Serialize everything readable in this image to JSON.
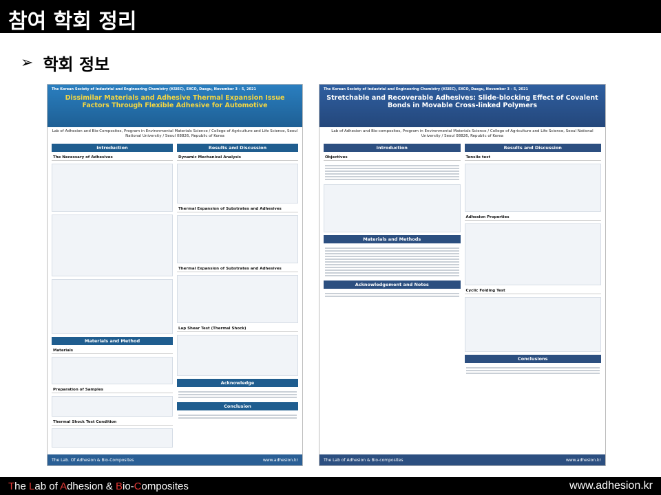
{
  "slide": {
    "title": "참여 학회 정리",
    "section_label": "학회 정보"
  },
  "poster1": {
    "conference": "The Korean Society of Industrial and Engineering Chemistry (KSIEC), EXCO, Daegu, November 3 – 5, 2021",
    "title": "Dissimilar Materials and Adhesive Thermal Expansion Issue Factors Through Flexible Adhesive for Automotive",
    "affiliation": "Lab of Adhesion and Bio-Composites, Program in Environmental Materials Science / College of Agriculture and Life Science, Seoul National University / Seoul 08826, Republic of Korea",
    "sections": {
      "intro": "Introduction",
      "results": "Results and Discussion",
      "methods": "Materials and Method",
      "ack": "Acknowledge",
      "conclusion": "Conclusion"
    },
    "subsections": {
      "necessity": "The Necessary of Adhesives",
      "dma": "Dynamic Mechanical Analysis",
      "thermal1": "Thermal Expansion of Substrates and Adhesives",
      "thermal2": "Thermal Expansion of Substrates and Adhesives",
      "lapshear": "Lap Shear Test (Thermal Shock)",
      "materials": "Materials",
      "samples": "Preparation of Samples",
      "shocktest": "Thermal Shock Test Condition"
    },
    "footer_left": "The Lab. Of Adhesion & Bio-Composites",
    "footer_right": "www.adhesion.kr"
  },
  "poster2": {
    "conference": "The Korean Society of Industrial and Engineering Chemistry (KSIEC), EXCO, Daegu, November 3 – 5, 2021",
    "title": "Stretchable and Recoverable Adhesives: Slide-blocking Effect of Covalent Bonds in Movable Cross-linked Polymers",
    "affiliation": "Lab of Adhesion and Bio-composites, Program in Environmental Materials Science / College of Agriculture and Life Science, Seoul National University / Seoul 08826, Republic of Korea",
    "sections": {
      "intro": "Introduction",
      "results": "Results and Discussion",
      "methods": "Materials and Methods",
      "ack": "Acknowledgement and Notes",
      "conclusion": "Conclusions"
    },
    "subsections": {
      "objectives": "Objectives",
      "tensile": "Tensile test",
      "adhesion": "Adhesion Properties",
      "cyclic": "Cyclic Folding Test"
    },
    "footer_left": "The Lab of Adhesion & Bio-composites",
    "footer_right": "www.adhesion.kr"
  },
  "footer": {
    "lab_t": "T",
    "lab_1": "he ",
    "lab_l": "L",
    "lab_2": "ab of ",
    "lab_a": "A",
    "lab_3": "dhesion & ",
    "lab_b": "B",
    "lab_4": "io-",
    "lab_c": "C",
    "lab_5": "omposites",
    "url": "www.adhesion.kr"
  }
}
